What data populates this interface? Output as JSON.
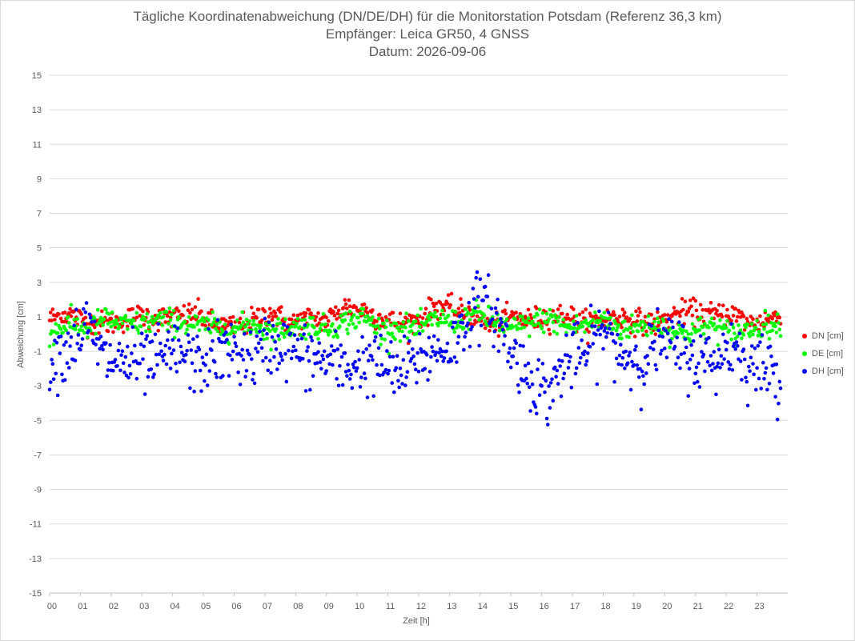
{
  "title": {
    "line1": "Tägliche Koordinatenabweichung (DN/DE/DH) für die Monitorstation Potsdam (Referenz 36,3 km)",
    "line2": "Empfänger: Leica GR50, 4 GNSS",
    "line3": "Datum: 2026-09-06"
  },
  "chart_data": {
    "type": "scatter",
    "xlabel": "Zeit [h]",
    "ylabel": "Abweichung [cm]",
    "xlim": [
      0,
      24
    ],
    "ylim": [
      -15,
      15
    ],
    "y_ticks": [
      "15",
      "13",
      "11",
      "9",
      "7",
      "5",
      "3",
      "1",
      "-1",
      "-3",
      "-5",
      "-7",
      "-9",
      "-11",
      "-13",
      "-15"
    ],
    "x_ticks": [
      "00",
      "01",
      "02",
      "03",
      "04",
      "05",
      "06",
      "07",
      "08",
      "09",
      "10",
      "11",
      "12",
      "13",
      "14",
      "15",
      "16",
      "17",
      "18",
      "19",
      "20",
      "21",
      "22",
      "23"
    ],
    "grid": "horizontal",
    "legend_position": "right",
    "sampling_interval_min": 2,
    "series": [
      {
        "name": "DN [cm]",
        "color": "#ff0000",
        "x": [
          0.0,
          0.6,
          1.2,
          1.8,
          2.4,
          3.0,
          3.6,
          4.2,
          4.8,
          5.4,
          6.0,
          6.6,
          7.2,
          7.8,
          8.4,
          9.0,
          9.6,
          10.2,
          10.8,
          11.4,
          12.0,
          12.6,
          13.2,
          13.8,
          14.4,
          15.0,
          15.6,
          16.2,
          16.8,
          17.4,
          18.0,
          18.6,
          19.2,
          19.8,
          20.4,
          21.0,
          21.6,
          22.2,
          22.8,
          23.4,
          23.8
        ],
        "y": [
          0.9,
          1.2,
          0.7,
          0.6,
          0.8,
          1.1,
          0.9,
          1.0,
          1.2,
          0.5,
          0.4,
          0.8,
          1.3,
          0.6,
          0.9,
          0.8,
          1.6,
          1.4,
          0.9,
          0.6,
          0.8,
          1.7,
          1.3,
          1.1,
          0.4,
          1.0,
          0.8,
          1.0,
          1.1,
          0.6,
          0.9,
          1.0,
          0.7,
          0.6,
          1.2,
          1.3,
          1.1,
          1.2,
          0.6,
          0.9,
          1.0
        ]
      },
      {
        "name": "DE [cm]",
        "color": "#00ff00",
        "x": [
          0.0,
          0.6,
          1.2,
          1.8,
          2.4,
          3.0,
          3.6,
          4.2,
          4.8,
          5.4,
          6.0,
          6.6,
          7.2,
          7.8,
          8.4,
          9.0,
          9.6,
          10.2,
          10.8,
          11.4,
          12.0,
          12.6,
          13.2,
          13.8,
          14.4,
          15.0,
          15.6,
          16.2,
          16.8,
          17.4,
          18.0,
          18.6,
          19.2,
          19.8,
          20.4,
          21.0,
          21.6,
          22.2,
          22.8,
          23.4,
          23.8
        ],
        "y": [
          0.0,
          0.6,
          0.3,
          0.9,
          0.5,
          0.6,
          0.8,
          0.7,
          0.5,
          0.4,
          0.3,
          0.6,
          0.1,
          0.4,
          0.5,
          0.3,
          0.7,
          1.0,
          0.2,
          0.4,
          0.3,
          0.9,
          0.7,
          1.2,
          0.8,
          0.3,
          0.6,
          0.9,
          0.4,
          0.5,
          0.8,
          0.3,
          0.4,
          0.6,
          0.0,
          0.2,
          0.5,
          0.0,
          0.3,
          0.6,
          0.3
        ]
      },
      {
        "name": "DH [cm]",
        "color": "#0000ff",
        "x": [
          0.0,
          0.6,
          1.2,
          1.8,
          2.4,
          3.0,
          3.6,
          4.2,
          4.8,
          5.4,
          6.0,
          6.6,
          7.2,
          7.8,
          8.4,
          9.0,
          9.6,
          10.2,
          10.8,
          11.4,
          12.0,
          12.6,
          13.2,
          13.8,
          14.4,
          15.0,
          15.6,
          16.2,
          16.8,
          17.4,
          18.0,
          18.6,
          19.2,
          19.8,
          20.4,
          21.0,
          21.6,
          22.2,
          22.8,
          23.4,
          23.8
        ],
        "y": [
          -1.5,
          -0.8,
          0.5,
          -1.5,
          -1.6,
          -1.8,
          -1.5,
          -1.0,
          -1.8,
          -1.2,
          -1.0,
          -1.5,
          -0.5,
          -0.8,
          -1.4,
          -1.5,
          -2.0,
          -1.6,
          -1.8,
          -2.4,
          -1.4,
          -1.0,
          -0.5,
          1.8,
          1.4,
          -1.0,
          -2.5,
          -3.5,
          -1.5,
          -1.2,
          0.3,
          -1.2,
          -1.6,
          -0.5,
          -0.8,
          -1.5,
          -1.6,
          -0.6,
          -1.8,
          -2.0,
          -2.6
        ]
      }
    ]
  }
}
